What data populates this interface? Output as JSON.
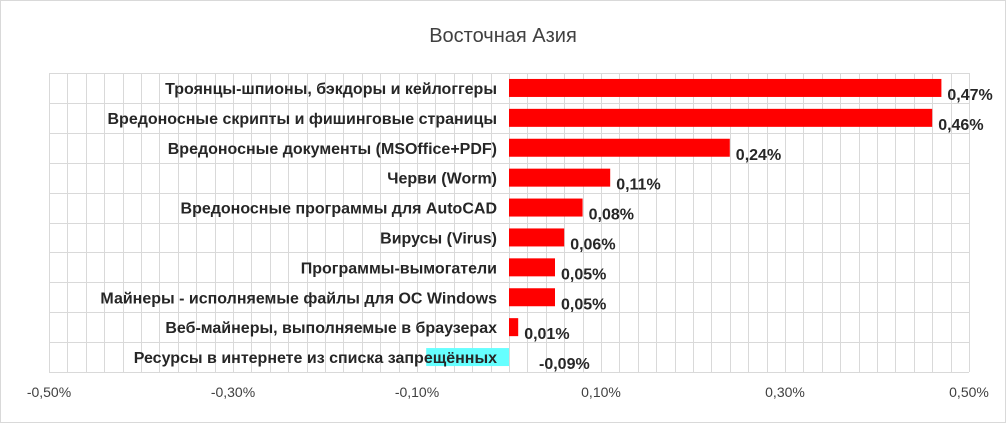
{
  "chart_data": {
    "type": "bar",
    "orientation": "horizontal",
    "title": "Восточная Азия",
    "categories": [
      "Троянцы-шпионы, бэкдоры и кейлоггеры",
      "Вредоносные скрипты и фишинговые страницы",
      "Вредоносные документы (MSOffice+PDF)",
      "Черви (Worm)",
      "Вредоносные программы для AutoCAD",
      "Вирусы (Virus)",
      "Программы-вымогатели",
      "Майнеры - исполняемые файлы для ОС Windows",
      "Веб-майнеры, выполняемые в браузерах",
      "Ресурсы в интернете из списка запрещённых"
    ],
    "values": [
      0.47,
      0.46,
      0.24,
      0.11,
      0.08,
      0.06,
      0.05,
      0.05,
      0.01,
      -0.09
    ],
    "value_labels": [
      "0,47%",
      "0,46%",
      "0,24%",
      "0,11%",
      "0,08%",
      "0,06%",
      "0,05%",
      "0,05%",
      "0,01%",
      "-0,09%"
    ],
    "xlim": [
      -0.5,
      0.5
    ],
    "xticks": [
      -0.5,
      -0.3,
      -0.1,
      0.1,
      0.3,
      0.5
    ],
    "xtick_labels": [
      "-0,50%",
      "-0,30%",
      "-0,10%",
      "0,10%",
      "0,30%",
      "0,50%"
    ],
    "colors": {
      "positive": "#ff0000",
      "negative": "#66ffff",
      "grid": "#d9d9d9"
    },
    "grid": true,
    "legend": "none"
  }
}
